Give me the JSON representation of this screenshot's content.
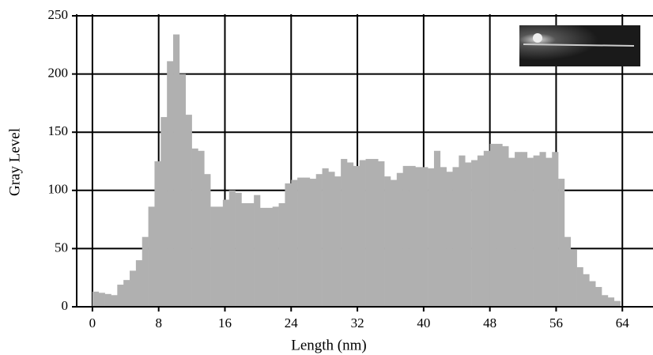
{
  "chart_data": {
    "type": "histogram",
    "x_label": "Length (nm)",
    "y_label": "Gray Level",
    "bins": [
      0,
      0.75,
      1.5,
      2.25,
      3,
      3.75,
      4.5,
      5.25,
      6,
      6.75,
      7.5,
      8.25,
      9,
      9.75,
      10.5,
      11.25,
      12,
      12.75,
      13.5,
      14.25,
      15,
      15.75,
      16.5,
      17.25,
      18,
      18.75,
      19.5,
      20.25,
      21,
      21.75,
      22.5,
      23.25,
      24,
      24.75,
      25.5,
      26.25,
      27,
      27.75,
      28.5,
      29.25,
      30,
      30.75,
      31.5,
      32.25,
      33,
      33.75,
      34.5,
      35.25,
      36,
      36.75,
      37.5,
      38.25,
      39,
      39.75,
      40.5,
      41.25,
      42,
      42.75,
      43.5,
      44.25,
      45,
      45.75,
      46.5,
      47.25,
      48,
      48.75,
      49.5,
      50.25,
      51,
      51.75,
      52.5,
      53.25,
      54,
      54.75,
      55.5,
      56.25,
      57,
      57.75,
      58.5,
      59.25,
      60,
      60.75,
      61.5,
      62.25,
      63,
      63.75
    ],
    "values": [
      13,
      12,
      11,
      10,
      19,
      23,
      31,
      40,
      60,
      86,
      125,
      163,
      211,
      234,
      200,
      165,
      136,
      134,
      114,
      86,
      86,
      92,
      100,
      98,
      89,
      89,
      96,
      85,
      85,
      86,
      89,
      106,
      109,
      111,
      111,
      110,
      114,
      119,
      116,
      112,
      127,
      124,
      121,
      126,
      127,
      127,
      125,
      112,
      109,
      115,
      121,
      121,
      120,
      120,
      119,
      134,
      120,
      116,
      120,
      130,
      124,
      126,
      130,
      134,
      140,
      140,
      138,
      128,
      133,
      133,
      128,
      130,
      133,
      128,
      133,
      110,
      60,
      49,
      34,
      28,
      22,
      17,
      10,
      8,
      5
    ],
    "color": "#b0b0b0",
    "xlim": [
      -1.9,
      67.7
    ],
    "xticks": [
      0,
      8,
      16,
      24,
      32,
      40,
      48,
      56,
      64
    ],
    "ylim": [
      0,
      250
    ],
    "yticks": [
      0,
      50,
      100,
      150,
      200,
      250
    ],
    "grid": true
  }
}
